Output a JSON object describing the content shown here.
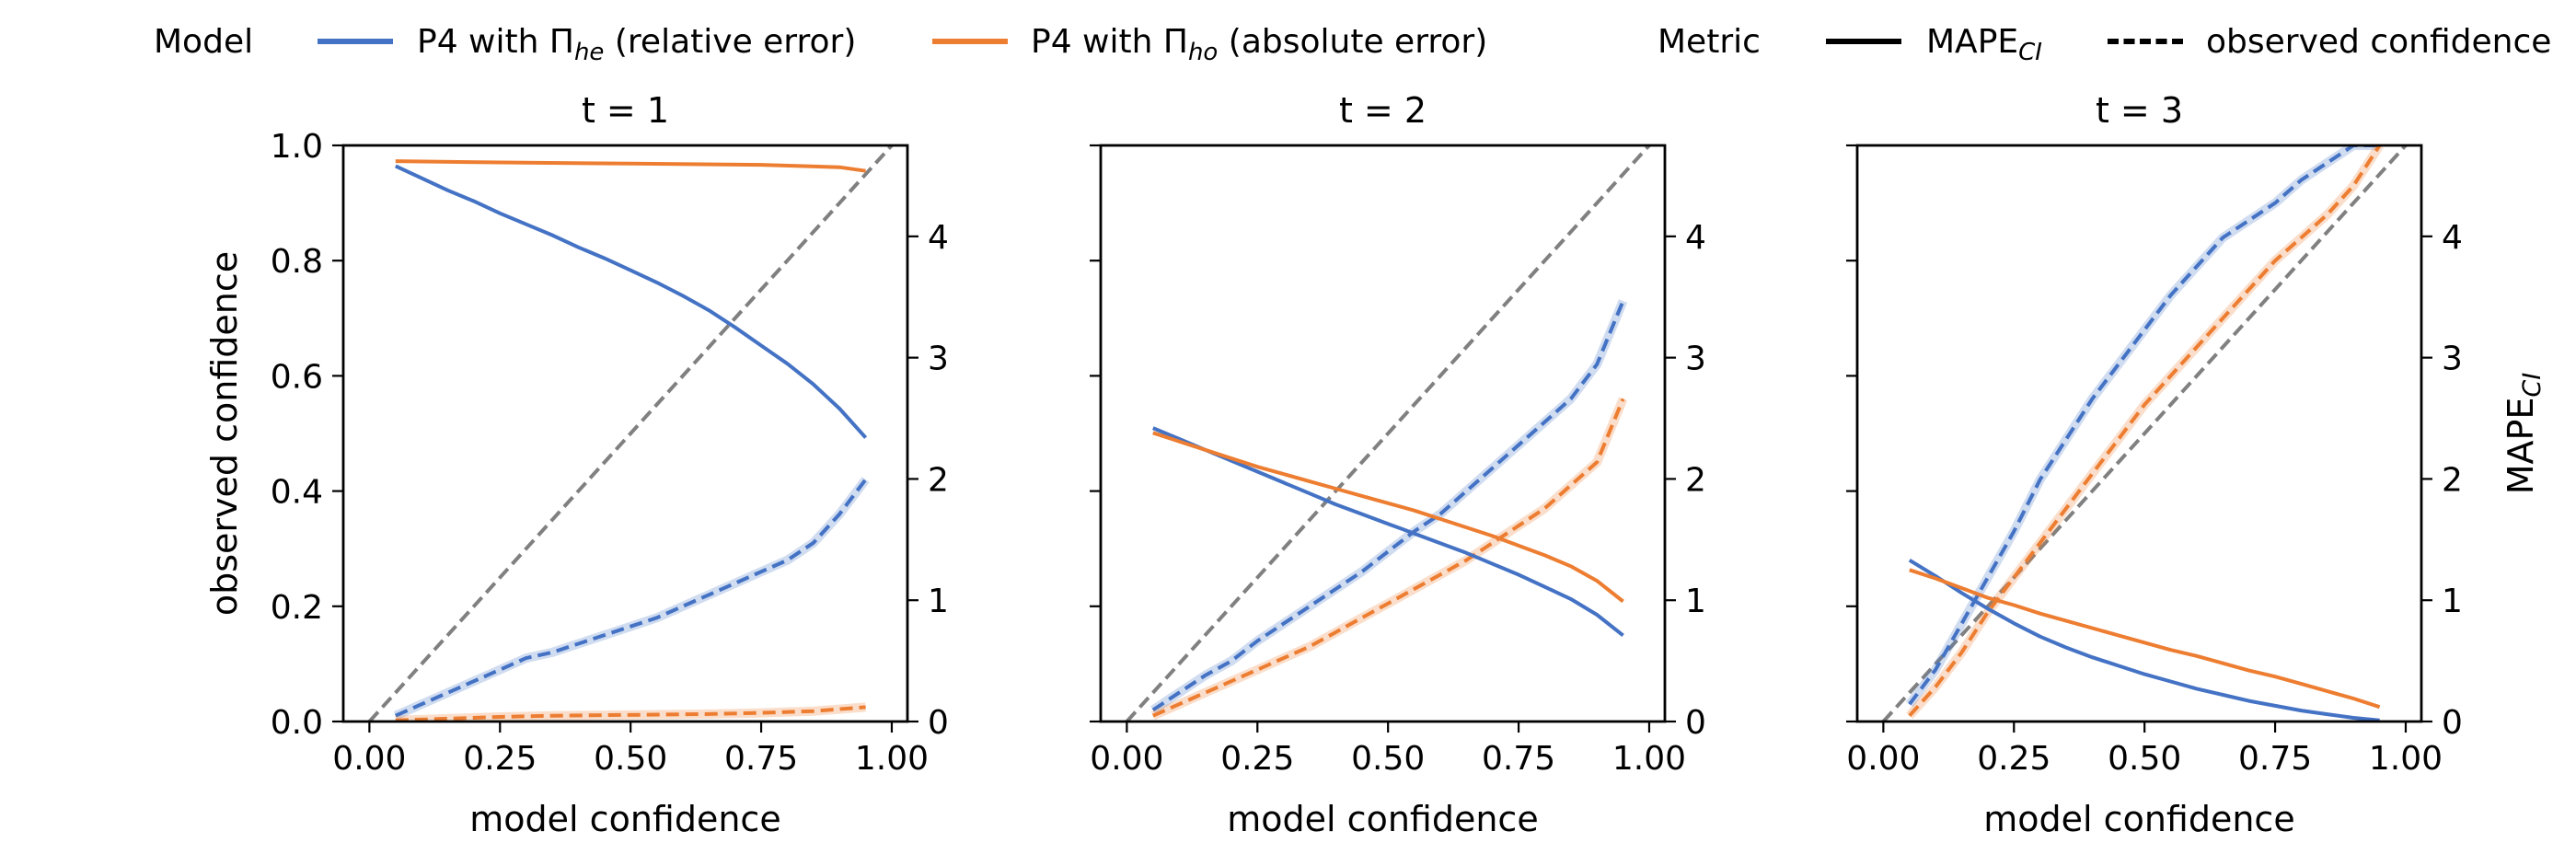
{
  "legend": {
    "model_title": "Model",
    "model_entries": [
      {
        "label_main": "P4 with Π",
        "label_sub": "he",
        "label_tail": " (relative error)",
        "color": "#4472C4"
      },
      {
        "label_main": "P4 with Π",
        "label_sub": "ho",
        "label_tail": " (absolute error)",
        "color": "#ED7D31"
      }
    ],
    "metric_title": "Metric",
    "metric_entries": [
      {
        "label_main": "MAPE",
        "label_sub": "CI",
        "style": "solid"
      },
      {
        "label_main": "observed confidence",
        "label_sub": "",
        "style": "dashed"
      }
    ]
  },
  "colors": {
    "blue": "#4472C4",
    "orange": "#ED7D31",
    "diagonal": "#808080"
  },
  "chart_data": [
    {
      "type": "line",
      "title": "t = 1",
      "xlabel": "model confidence",
      "ylabel": "observed confidence",
      "y2label": "",
      "xlim": [
        -0.05,
        1.03
      ],
      "ylim": [
        0,
        1
      ],
      "y2lim": [
        0,
        4.75
      ],
      "xticks": [
        "0.00",
        "0.25",
        "0.50",
        "0.75",
        "1.00"
      ],
      "yticks": [
        "0.0",
        "0.2",
        "0.4",
        "0.6",
        "0.8",
        "1.0"
      ],
      "y2ticks": [
        "0",
        "1",
        "2",
        "3",
        "4"
      ],
      "series": [
        {
          "model": "blue",
          "metric": "observed confidence",
          "axis": "left",
          "x": [
            0.05,
            0.1,
            0.15,
            0.2,
            0.25,
            0.3,
            0.35,
            0.4,
            0.45,
            0.5,
            0.55,
            0.6,
            0.65,
            0.7,
            0.75,
            0.8,
            0.85,
            0.9,
            0.95
          ],
          "y": [
            0.01,
            0.03,
            0.05,
            0.07,
            0.09,
            0.11,
            0.12,
            0.135,
            0.15,
            0.165,
            0.18,
            0.2,
            0.22,
            0.24,
            0.26,
            0.28,
            0.31,
            0.36,
            0.42
          ]
        },
        {
          "model": "orange",
          "metric": "observed confidence",
          "axis": "left",
          "x": [
            0.05,
            0.15,
            0.25,
            0.35,
            0.45,
            0.55,
            0.65,
            0.75,
            0.85,
            0.95
          ],
          "y": [
            0.002,
            0.005,
            0.008,
            0.01,
            0.011,
            0.012,
            0.013,
            0.015,
            0.018,
            0.025
          ]
        },
        {
          "model": "blue",
          "metric": "MAPE_CI",
          "axis": "right",
          "x": [
            0.05,
            0.1,
            0.15,
            0.2,
            0.25,
            0.3,
            0.35,
            0.4,
            0.45,
            0.5,
            0.55,
            0.6,
            0.65,
            0.7,
            0.75,
            0.8,
            0.85,
            0.9,
            0.95
          ],
          "y": [
            4.58,
            4.48,
            4.38,
            4.29,
            4.19,
            4.1,
            4.01,
            3.91,
            3.82,
            3.72,
            3.62,
            3.51,
            3.39,
            3.25,
            3.1,
            2.95,
            2.78,
            2.58,
            2.34
          ]
        },
        {
          "model": "orange",
          "metric": "MAPE_CI",
          "axis": "right",
          "x": [
            0.05,
            0.25,
            0.5,
            0.75,
            0.9,
            0.95
          ],
          "y": [
            4.62,
            4.61,
            4.6,
            4.59,
            4.57,
            4.54
          ]
        }
      ]
    },
    {
      "type": "line",
      "title": "t = 2",
      "xlabel": "model confidence",
      "ylabel": "",
      "y2label": "",
      "xlim": [
        -0.05,
        1.03
      ],
      "ylim": [
        0,
        1
      ],
      "y2lim": [
        0,
        4.75
      ],
      "xticks": [
        "0.00",
        "0.25",
        "0.50",
        "0.75",
        "1.00"
      ],
      "yticks": [
        "",
        "",
        "",
        "",
        "",
        ""
      ],
      "y2ticks": [
        "0",
        "1",
        "2",
        "3",
        "4"
      ],
      "series": [
        {
          "model": "blue",
          "metric": "observed confidence",
          "axis": "left",
          "x": [
            0.05,
            0.1,
            0.15,
            0.2,
            0.25,
            0.3,
            0.35,
            0.4,
            0.45,
            0.5,
            0.55,
            0.6,
            0.65,
            0.7,
            0.75,
            0.8,
            0.85,
            0.9,
            0.95
          ],
          "y": [
            0.02,
            0.05,
            0.08,
            0.105,
            0.14,
            0.17,
            0.2,
            0.23,
            0.26,
            0.295,
            0.33,
            0.36,
            0.4,
            0.44,
            0.48,
            0.52,
            0.56,
            0.62,
            0.73
          ]
        },
        {
          "model": "orange",
          "metric": "observed confidence",
          "axis": "left",
          "x": [
            0.05,
            0.1,
            0.15,
            0.2,
            0.25,
            0.3,
            0.35,
            0.4,
            0.45,
            0.5,
            0.55,
            0.6,
            0.65,
            0.7,
            0.75,
            0.8,
            0.85,
            0.9,
            0.95
          ],
          "y": [
            0.01,
            0.03,
            0.05,
            0.07,
            0.09,
            0.11,
            0.13,
            0.155,
            0.18,
            0.205,
            0.23,
            0.255,
            0.28,
            0.31,
            0.34,
            0.37,
            0.41,
            0.45,
            0.56
          ]
        },
        {
          "model": "blue",
          "metric": "MAPE_CI",
          "axis": "right",
          "x": [
            0.05,
            0.1,
            0.15,
            0.2,
            0.25,
            0.3,
            0.35,
            0.4,
            0.45,
            0.5,
            0.55,
            0.6,
            0.65,
            0.7,
            0.75,
            0.8,
            0.85,
            0.9,
            0.95
          ],
          "y": [
            2.42,
            2.33,
            2.24,
            2.15,
            2.06,
            1.97,
            1.88,
            1.79,
            1.71,
            1.63,
            1.55,
            1.47,
            1.39,
            1.3,
            1.21,
            1.11,
            1.01,
            0.88,
            0.71
          ]
        },
        {
          "model": "orange",
          "metric": "MAPE_CI",
          "axis": "right",
          "x": [
            0.05,
            0.1,
            0.15,
            0.2,
            0.25,
            0.3,
            0.35,
            0.4,
            0.45,
            0.5,
            0.55,
            0.6,
            0.65,
            0.7,
            0.75,
            0.8,
            0.85,
            0.9,
            0.95
          ],
          "y": [
            2.38,
            2.31,
            2.24,
            2.17,
            2.1,
            2.04,
            1.98,
            1.92,
            1.86,
            1.8,
            1.74,
            1.67,
            1.6,
            1.53,
            1.45,
            1.37,
            1.28,
            1.16,
            0.99
          ]
        }
      ]
    },
    {
      "type": "line",
      "title": "t = 3",
      "xlabel": "model confidence",
      "ylabel": "",
      "y2label": "MAPE_CI",
      "xlim": [
        -0.05,
        1.03
      ],
      "ylim": [
        0,
        1
      ],
      "y2lim": [
        0,
        4.75
      ],
      "xticks": [
        "0.00",
        "0.25",
        "0.50",
        "0.75",
        "1.00"
      ],
      "yticks": [
        "",
        "",
        "",
        "",
        "",
        ""
      ],
      "y2ticks": [
        "0",
        "1",
        "2",
        "3",
        "4"
      ],
      "series": [
        {
          "model": "blue",
          "metric": "observed confidence",
          "axis": "left",
          "x": [
            0.05,
            0.1,
            0.15,
            0.2,
            0.25,
            0.3,
            0.35,
            0.4,
            0.45,
            0.5,
            0.55,
            0.6,
            0.65,
            0.7,
            0.75,
            0.8,
            0.85,
            0.9,
            0.95
          ],
          "y": [
            0.03,
            0.09,
            0.17,
            0.25,
            0.33,
            0.42,
            0.49,
            0.56,
            0.62,
            0.68,
            0.74,
            0.79,
            0.84,
            0.87,
            0.9,
            0.94,
            0.97,
            1.0,
            1.0
          ]
        },
        {
          "model": "orange",
          "metric": "observed confidence",
          "axis": "left",
          "x": [
            0.05,
            0.1,
            0.15,
            0.2,
            0.25,
            0.3,
            0.35,
            0.4,
            0.45,
            0.5,
            0.55,
            0.6,
            0.65,
            0.7,
            0.75,
            0.8,
            0.85,
            0.9,
            0.95
          ],
          "y": [
            0.01,
            0.06,
            0.12,
            0.19,
            0.25,
            0.31,
            0.37,
            0.43,
            0.49,
            0.55,
            0.6,
            0.65,
            0.7,
            0.75,
            0.8,
            0.84,
            0.88,
            0.93,
            1.0
          ]
        },
        {
          "model": "blue",
          "metric": "MAPE_CI",
          "axis": "right",
          "x": [
            0.05,
            0.1,
            0.15,
            0.2,
            0.25,
            0.3,
            0.35,
            0.4,
            0.45,
            0.5,
            0.55,
            0.6,
            0.65,
            0.7,
            0.75,
            0.8,
            0.85,
            0.9,
            0.95
          ],
          "y": [
            1.33,
            1.2,
            1.06,
            0.93,
            0.81,
            0.7,
            0.61,
            0.53,
            0.46,
            0.39,
            0.33,
            0.27,
            0.22,
            0.17,
            0.13,
            0.09,
            0.06,
            0.03,
            0.01
          ]
        },
        {
          "model": "orange",
          "metric": "MAPE_CI",
          "axis": "right",
          "x": [
            0.05,
            0.1,
            0.15,
            0.2,
            0.25,
            0.3,
            0.35,
            0.4,
            0.45,
            0.5,
            0.55,
            0.6,
            0.65,
            0.7,
            0.75,
            0.8,
            0.85,
            0.9,
            0.95
          ],
          "y": [
            1.25,
            1.18,
            1.1,
            1.02,
            0.96,
            0.89,
            0.83,
            0.77,
            0.71,
            0.65,
            0.59,
            0.54,
            0.48,
            0.42,
            0.37,
            0.31,
            0.25,
            0.19,
            0.12
          ]
        }
      ]
    }
  ]
}
